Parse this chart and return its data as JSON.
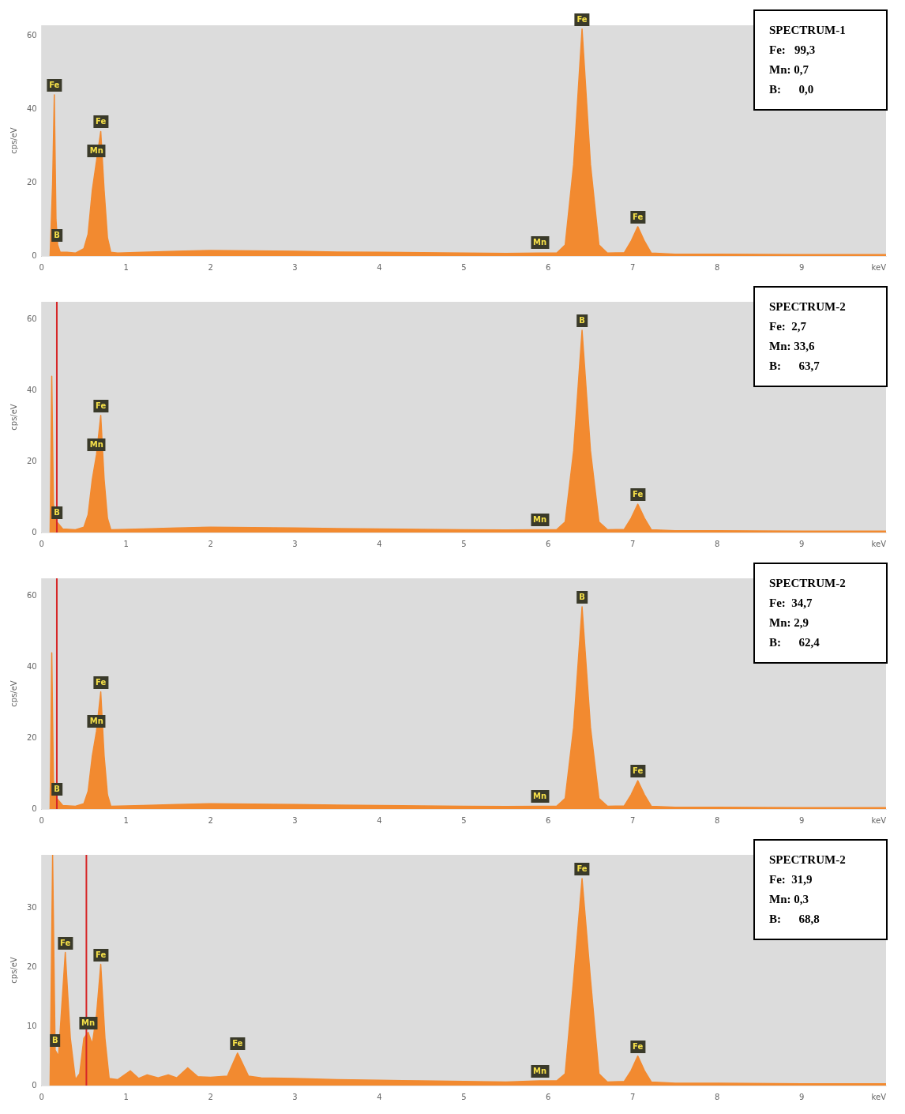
{
  "chart_data": [
    {
      "type": "area",
      "xlabel": "keV",
      "ylabel": "cps/eV",
      "xlim": [
        0,
        10
      ],
      "xticks": [
        0,
        1,
        2,
        3,
        4,
        5,
        6,
        7,
        8,
        9
      ],
      "ylim": [
        0,
        63
      ],
      "yticks": [
        0,
        20,
        40,
        60
      ],
      "grid": false,
      "legend": false,
      "series": [
        {
          "color": "#f28a30",
          "x": [
            0.1,
            0.13,
            0.15,
            0.17,
            0.19,
            0.22,
            0.3,
            0.4,
            0.5,
            0.55,
            0.6,
            0.65,
            0.7,
            0.74,
            0.78,
            0.82,
            0.9,
            1.2,
            1.6,
            2.0,
            2.5,
            3.0,
            3.5,
            4.0,
            4.5,
            5.0,
            5.5,
            5.9,
            6.1,
            6.2,
            6.3,
            6.4,
            6.5,
            6.6,
            6.7,
            6.9,
            6.98,
            7.06,
            7.14,
            7.22,
            7.5,
            8,
            9,
            10
          ],
          "values": [
            0,
            20,
            44,
            10,
            3,
            1,
            1,
            0.8,
            2,
            6,
            18,
            26,
            34,
            18,
            5,
            1,
            0.8,
            1,
            1.3,
            1.5,
            1.4,
            1.3,
            1.1,
            1,
            0.9,
            0.8,
            0.7,
            0.8,
            0.8,
            3,
            25,
            62,
            25,
            3,
            0.8,
            0.9,
            4,
            8,
            4,
            0.8,
            0.5,
            0.5,
            0.4,
            0.4
          ]
        }
      ],
      "annotations": [
        {
          "text": "Fe",
          "x": 0.15,
          "y": 44
        },
        {
          "text": "B",
          "x": 0.18,
          "y": 3
        },
        {
          "text": "Mn",
          "x": 0.65,
          "y": 26
        },
        {
          "text": "Fe",
          "x": 0.7,
          "y": 34
        },
        {
          "text": "Mn",
          "x": 5.9,
          "y": 1
        },
        {
          "text": "Fe",
          "x": 6.4,
          "y": 62
        },
        {
          "text": "Fe",
          "x": 7.06,
          "y": 8
        },
        "SPECTRUM-1",
        "Fe:   99,3",
        "Mn: 0,7",
        "B:      0,0"
      ]
    },
    {
      "type": "area",
      "xlabel": "keV",
      "ylabel": "cps/eV",
      "xlim": [
        0,
        10
      ],
      "xticks": [
        0,
        1,
        2,
        3,
        4,
        5,
        6,
        7,
        8,
        9
      ],
      "ylim": [
        0,
        65
      ],
      "yticks": [
        0,
        20,
        40,
        60
      ],
      "grid": false,
      "legend": false,
      "series": [
        {
          "color": "#f28a30",
          "x": [
            0.1,
            0.12,
            0.14,
            0.18,
            0.25,
            0.4,
            0.5,
            0.55,
            0.6,
            0.65,
            0.7,
            0.74,
            0.78,
            0.82,
            1.2,
            1.6,
            2.0,
            2.5,
            3.0,
            3.5,
            4.0,
            4.5,
            5.0,
            5.5,
            5.9,
            6.1,
            6.2,
            6.3,
            6.4,
            6.5,
            6.6,
            6.7,
            6.9,
            6.98,
            7.06,
            7.14,
            7.22,
            7.5,
            8,
            9,
            10
          ],
          "values": [
            0,
            44,
            8,
            3,
            1,
            0.8,
            1.5,
            5,
            15,
            22,
            33,
            15,
            4,
            0.8,
            1,
            1.3,
            1.5,
            1.4,
            1.3,
            1.1,
            1,
            0.9,
            0.8,
            0.7,
            0.8,
            0.8,
            3,
            23,
            57,
            23,
            3,
            0.8,
            0.9,
            4,
            8,
            4,
            0.8,
            0.5,
            0.5,
            0.4,
            0.4
          ]
        }
      ],
      "ref_lines": [
        {
          "axis": "x",
          "value": 0.18,
          "color": "#d62728"
        }
      ],
      "annotations": [
        {
          "text": "B",
          "x": 0.18,
          "y": 3
        },
        {
          "text": "Mn",
          "x": 0.65,
          "y": 22
        },
        {
          "text": "Fe",
          "x": 0.7,
          "y": 33
        },
        {
          "text": "Mn",
          "x": 5.9,
          "y": 1
        },
        {
          "text": "B",
          "x": 6.4,
          "y": 57
        },
        {
          "text": "Fe",
          "x": 7.06,
          "y": 8
        },
        "SPECTRUM-2",
        "Fe:  2,7",
        "Mn: 33,6",
        "B:      63,7"
      ]
    },
    {
      "type": "area",
      "xlabel": "keV",
      "ylabel": "cps/eV",
      "xlim": [
        0,
        10
      ],
      "xticks": [
        0,
        1,
        2,
        3,
        4,
        5,
        6,
        7,
        8,
        9
      ],
      "ylim": [
        0,
        65
      ],
      "yticks": [
        0,
        20,
        40,
        60
      ],
      "grid": false,
      "legend": false,
      "series": [
        {
          "color": "#f28a30",
          "x": [
            0.1,
            0.12,
            0.14,
            0.18,
            0.25,
            0.4,
            0.5,
            0.55,
            0.6,
            0.65,
            0.7,
            0.74,
            0.78,
            0.82,
            1.2,
            1.6,
            2.0,
            2.5,
            3.0,
            3.5,
            4.0,
            4.5,
            5.0,
            5.5,
            5.9,
            6.1,
            6.2,
            6.3,
            6.4,
            6.5,
            6.6,
            6.7,
            6.9,
            6.98,
            7.06,
            7.14,
            7.22,
            7.5,
            8,
            9,
            10
          ],
          "values": [
            0,
            44,
            8,
            3,
            1,
            0.8,
            1.5,
            5,
            15,
            22,
            33,
            15,
            4,
            0.8,
            1,
            1.3,
            1.5,
            1.4,
            1.3,
            1.1,
            1,
            0.9,
            0.8,
            0.7,
            0.8,
            0.8,
            3,
            23,
            57,
            23,
            3,
            0.8,
            0.9,
            4,
            8,
            4,
            0.8,
            0.5,
            0.5,
            0.4,
            0.4
          ]
        }
      ],
      "ref_lines": [
        {
          "axis": "x",
          "value": 0.18,
          "color": "#d62728"
        }
      ],
      "annotations": [
        {
          "text": "B",
          "x": 0.18,
          "y": 3
        },
        {
          "text": "Mn",
          "x": 0.65,
          "y": 22
        },
        {
          "text": "Fe",
          "x": 0.7,
          "y": 33
        },
        {
          "text": "Mn",
          "x": 5.9,
          "y": 1
        },
        {
          "text": "B",
          "x": 6.4,
          "y": 57
        },
        {
          "text": "Fe",
          "x": 7.06,
          "y": 8
        },
        "SPECTRUM-2",
        "Fe:  34,7",
        "Mn: 2,9",
        "B:      62,4"
      ]
    },
    {
      "type": "area",
      "xlabel": "keV",
      "ylabel": "cps/eV",
      "xlim": [
        0,
        10
      ],
      "xticks": [
        0,
        1,
        2,
        3,
        4,
        5,
        6,
        7,
        8,
        9
      ],
      "ylim": [
        0,
        39
      ],
      "yticks": [
        0,
        10,
        20,
        30
      ],
      "grid": false,
      "legend": false,
      "series": [
        {
          "color": "#f28a30",
          "x": [
            0.1,
            0.13,
            0.16,
            0.2,
            0.28,
            0.34,
            0.4,
            0.45,
            0.5,
            0.55,
            0.6,
            0.65,
            0.7,
            0.75,
            0.8,
            0.9,
            1.05,
            1.15,
            1.25,
            1.38,
            1.5,
            1.6,
            1.73,
            1.85,
            2.0,
            2.2,
            2.32,
            2.45,
            2.6,
            3.0,
            3.5,
            4.0,
            4.5,
            5.0,
            5.5,
            5.9,
            6.1,
            6.2,
            6.3,
            6.4,
            6.5,
            6.6,
            6.7,
            6.9,
            6.98,
            7.06,
            7.14,
            7.22,
            7.5,
            8,
            9,
            10
          ],
          "values": [
            0,
            39,
            6,
            5,
            22.5,
            8,
            1,
            2,
            8,
            9,
            7,
            12,
            20.5,
            8,
            1.2,
            1,
            2.5,
            1.2,
            1.8,
            1.3,
            1.8,
            1.3,
            3,
            1.5,
            1.4,
            1.6,
            5.5,
            1.6,
            1.3,
            1.2,
            1,
            0.9,
            0.8,
            0.7,
            0.6,
            0.8,
            0.8,
            2,
            18,
            35,
            18,
            2,
            0.6,
            0.7,
            2.5,
            5,
            2.5,
            0.6,
            0.4,
            0.4,
            0.3,
            0.3
          ]
        }
      ],
      "ref_lines": [
        {
          "axis": "x",
          "value": 0.53,
          "color": "#d62728"
        }
      ],
      "annotations": [
        {
          "text": "B",
          "x": 0.16,
          "y": 6
        },
        {
          "text": "Fe",
          "x": 0.28,
          "y": 22.5
        },
        {
          "text": "Mn",
          "x": 0.55,
          "y": 9
        },
        {
          "text": "Fe",
          "x": 0.7,
          "y": 20.5
        },
        {
          "text": "Fe",
          "x": 2.32,
          "y": 5.5
        },
        {
          "text": "Mn",
          "x": 5.9,
          "y": 0.8
        },
        {
          "text": "Fe",
          "x": 6.4,
          "y": 35
        },
        {
          "text": "Fe",
          "x": 7.06,
          "y": 5
        },
        "SPECTRUM-2",
        "Fe:  31,9",
        "Mn: 0,3",
        "B:      68,8"
      ]
    }
  ]
}
